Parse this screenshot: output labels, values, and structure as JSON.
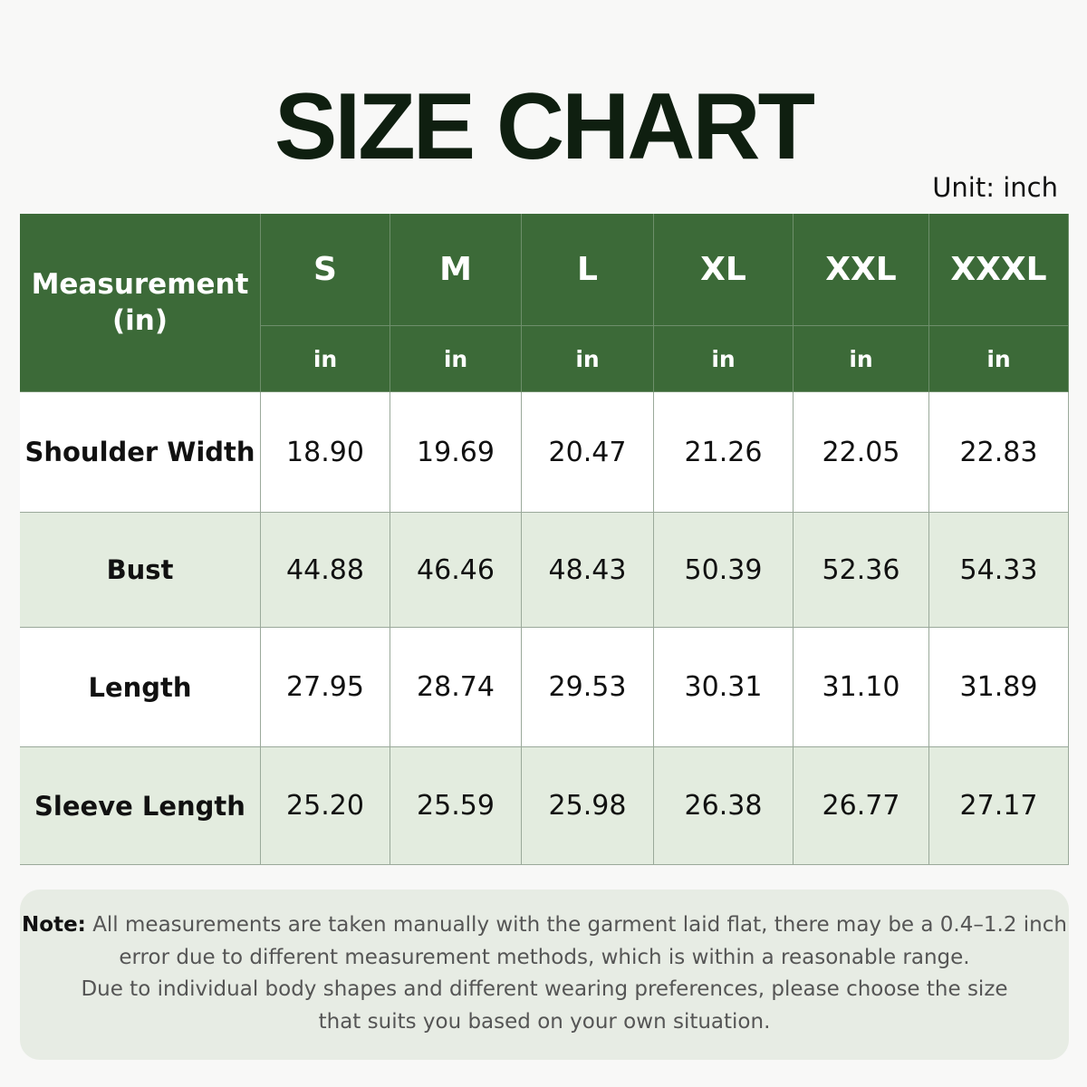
{
  "title": "SIZE CHART",
  "unit": "Unit: inch",
  "table": {
    "header": {
      "first": "Measurement (in)",
      "sizes": [
        "S",
        "M",
        "L",
        "XL",
        "XXL",
        "XXXL"
      ],
      "units": [
        "in",
        "in",
        "in",
        "in",
        "in",
        "in"
      ]
    },
    "rows": [
      [
        "Shoulder Width",
        "18.90",
        "19.69",
        "20.47",
        "21.26",
        "22.05",
        "22.83"
      ],
      [
        "Bust",
        "44.88",
        "46.46",
        "48.43",
        "50.39",
        "52.36",
        "54.33"
      ],
      [
        "Length",
        "27.95",
        "28.74",
        "29.53",
        "30.31",
        "31.10",
        "31.89"
      ],
      [
        "Sleeve Length",
        "25.20",
        "25.59",
        "25.98",
        "26.38",
        "26.77",
        "27.17"
      ]
    ]
  },
  "note": {
    "label": "Note:",
    "lines": [
      "All measurements are taken manually with the garment laid flat, there may be a 0.4–1.2 inch",
      "error due to different measurement methods, which is within a reasonable range.",
      "Due to individual body shapes and different wearing preferences, please choose the size",
      "that suits you based on your own situation."
    ]
  }
}
